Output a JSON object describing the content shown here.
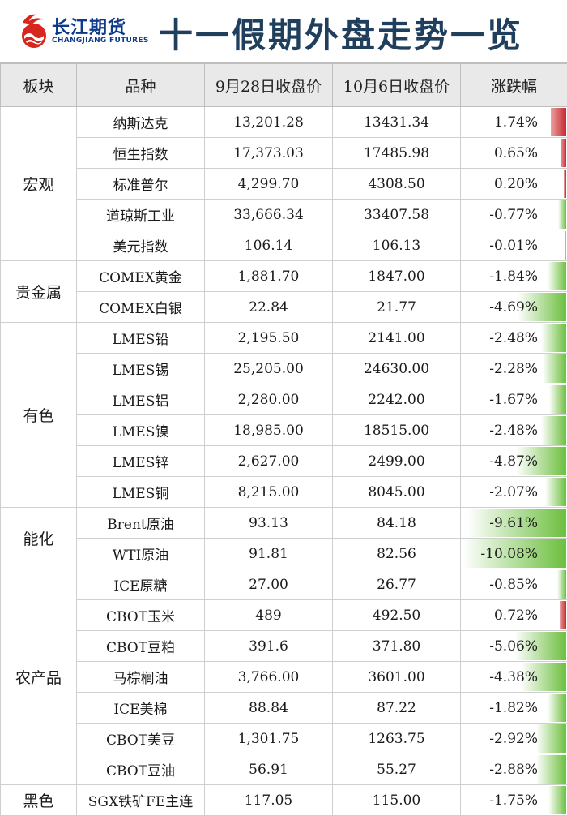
{
  "header": {
    "logo_cn": "长江期货",
    "logo_en": "CHANGJIANG FUTURES",
    "title": "十一假期外盘走势一览"
  },
  "table": {
    "columns": [
      "板块",
      "品种",
      "9月28日收盘价",
      "10月6日收盘价",
      "涨跌幅"
    ],
    "groups": [
      {
        "sector": "宏观",
        "rows": [
          {
            "name": "纳斯达克",
            "close_0928": "13,201.28",
            "close_1006": "13431.34",
            "change": "1.74%",
            "pct": 1.74
          },
          {
            "name": "恒生指数",
            "close_0928": "17,373.03",
            "close_1006": "17485.98",
            "change": "0.65%",
            "pct": 0.65
          },
          {
            "name": "标准普尔",
            "close_0928": "4,299.70",
            "close_1006": "4308.50",
            "change": "0.20%",
            "pct": 0.2
          },
          {
            "name": "道琼斯工业",
            "close_0928": "33,666.34",
            "close_1006": "33407.58",
            "change": "-0.77%",
            "pct": -0.77
          },
          {
            "name": "美元指数",
            "close_0928": "106.14",
            "close_1006": "106.13",
            "change": "-0.01%",
            "pct": -0.01
          }
        ]
      },
      {
        "sector": "贵金属",
        "rows": [
          {
            "name": "COMEX黄金",
            "close_0928": "1,881.70",
            "close_1006": "1847.00",
            "change": "-1.84%",
            "pct": -1.84
          },
          {
            "name": "COMEX白银",
            "close_0928": "22.84",
            "close_1006": "21.77",
            "change": "-4.69%",
            "pct": -4.69
          }
        ]
      },
      {
        "sector": "有色",
        "rows": [
          {
            "name": "LMES铅",
            "close_0928": "2,195.50",
            "close_1006": "2141.00",
            "change": "-2.48%",
            "pct": -2.48
          },
          {
            "name": "LMES锡",
            "close_0928": "25,205.00",
            "close_1006": "24630.00",
            "change": "-2.28%",
            "pct": -2.28
          },
          {
            "name": "LMES铝",
            "close_0928": "2,280.00",
            "close_1006": "2242.00",
            "change": "-1.67%",
            "pct": -1.67
          },
          {
            "name": "LMES镍",
            "close_0928": "18,985.00",
            "close_1006": "18515.00",
            "change": "-2.48%",
            "pct": -2.48
          },
          {
            "name": "LMES锌",
            "close_0928": "2,627.00",
            "close_1006": "2499.00",
            "change": "-4.87%",
            "pct": -4.87
          },
          {
            "name": "LMES铜",
            "close_0928": "8,215.00",
            "close_1006": "8045.00",
            "change": "-2.07%",
            "pct": -2.07
          }
        ]
      },
      {
        "sector": "能化",
        "rows": [
          {
            "name": "Brent原油",
            "close_0928": "93.13",
            "close_1006": "84.18",
            "change": "-9.61%",
            "pct": -9.61
          },
          {
            "name": "WTI原油",
            "close_0928": "91.81",
            "close_1006": "82.56",
            "change": "-10.08%",
            "pct": -10.08
          }
        ]
      },
      {
        "sector": "农产品",
        "rows": [
          {
            "name": "ICE原糖",
            "close_0928": "27.00",
            "close_1006": "26.77",
            "change": "-0.85%",
            "pct": -0.85
          },
          {
            "name": "CBOT玉米",
            "close_0928": "489",
            "close_1006": "492.50",
            "change": "0.72%",
            "pct": 0.72
          },
          {
            "name": "CBOT豆粕",
            "close_0928": "391.6",
            "close_1006": "371.80",
            "change": "-5.06%",
            "pct": -5.06
          },
          {
            "name": "马棕榈油",
            "close_0928": "3,766.00",
            "close_1006": "3601.00",
            "change": "-4.38%",
            "pct": -4.38
          },
          {
            "name": "ICE美棉",
            "close_0928": "88.84",
            "close_1006": "87.22",
            "change": "-1.82%",
            "pct": -1.82
          },
          {
            "name": "CBOT美豆",
            "close_0928": "1,301.75",
            "close_1006": "1263.75",
            "change": "-2.92%",
            "pct": -2.92
          },
          {
            "name": "CBOT豆油",
            "close_0928": "56.91",
            "close_1006": "55.27",
            "change": "-2.88%",
            "pct": -2.88
          }
        ]
      },
      {
        "sector": "黑色",
        "rows": [
          {
            "name": "SGX铁矿FE主连",
            "close_0928": "117.05",
            "close_1006": "115.00",
            "change": "-1.75%",
            "pct": -1.75
          }
        ]
      }
    ]
  },
  "colors": {
    "up_bar": "#c9262d",
    "down_bar": "#6cbf3e",
    "title": "#1f3f5c",
    "logo": "#0d3a8c",
    "logo_red": "#d7261e"
  }
}
